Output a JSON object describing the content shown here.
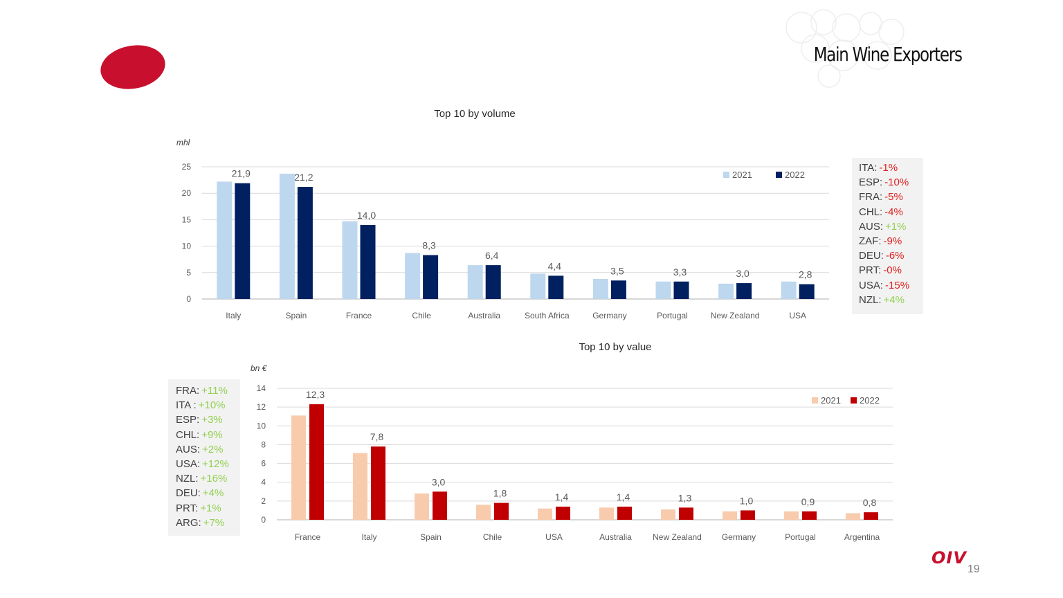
{
  "slide": {
    "title": "Main Wine Exporters",
    "page_number": "19",
    "footer_logo": "OIV",
    "colors": {
      "brand_red": "#c8102e",
      "positive": "#92d050",
      "negative": "#e02020"
    }
  },
  "chart_data": [
    {
      "id": "volume",
      "type": "bar",
      "title": "Top 10 by volume",
      "ylabel": "mhl",
      "xlabel": "",
      "ylim": [
        0,
        25
      ],
      "yticks": [
        0,
        5,
        10,
        15,
        20,
        25
      ],
      "grid": true,
      "legend_position": "top-right",
      "categories": [
        "Italy",
        "Spain",
        "France",
        "Chile",
        "Australia",
        "South Africa",
        "Germany",
        "Portugal",
        "New Zealand",
        "USA"
      ],
      "series": [
        {
          "name": "2021",
          "color": "#bdd7ee",
          "values": [
            22.2,
            23.7,
            14.7,
            8.7,
            6.4,
            4.8,
            3.8,
            3.3,
            2.9,
            3.3
          ]
        },
        {
          "name": "2022",
          "color": "#002060",
          "values": [
            21.9,
            21.2,
            14.0,
            8.3,
            6.4,
            4.4,
            3.5,
            3.3,
            3.0,
            2.8
          ]
        }
      ],
      "data_labels": [
        "21,9",
        "21,2",
        "14,0",
        "8,3",
        "6,4",
        "4,4",
        "3,5",
        "3,3",
        "3,0",
        "2,8"
      ]
    },
    {
      "id": "value",
      "type": "bar",
      "title": "Top 10 by value",
      "ylabel": "bn €",
      "xlabel": "",
      "ylim": [
        0,
        14
      ],
      "yticks": [
        0,
        2,
        4,
        6,
        8,
        10,
        12,
        14
      ],
      "grid": true,
      "legend_position": "top-right",
      "categories": [
        "France",
        "Italy",
        "Spain",
        "Chile",
        "USA",
        "Australia",
        "New Zealand",
        "Germany",
        "Portugal",
        "Argentina"
      ],
      "series": [
        {
          "name": "2021",
          "color": "#f8cbad",
          "values": [
            11.1,
            7.1,
            2.8,
            1.6,
            1.2,
            1.3,
            1.1,
            0.9,
            0.9,
            0.7
          ]
        },
        {
          "name": "2022",
          "color": "#c00000",
          "values": [
            12.3,
            7.8,
            3.0,
            1.8,
            1.4,
            1.4,
            1.3,
            1.0,
            0.9,
            0.8
          ]
        }
      ],
      "data_labels": [
        "12,3",
        "7,8",
        "3,0",
        "1,8",
        "1,4",
        "1,4",
        "1,3",
        "1,0",
        "0,9",
        "0,8"
      ]
    }
  ],
  "volume_changes": [
    {
      "code": "ITA:",
      "value": "-1%",
      "sign": "neg"
    },
    {
      "code": "ESP:",
      "value": "-10%",
      "sign": "neg"
    },
    {
      "code": "FRA:",
      "value": "-5%",
      "sign": "neg"
    },
    {
      "code": "CHL:",
      "value": "-4%",
      "sign": "neg"
    },
    {
      "code": "AUS:",
      "value": "+1%",
      "sign": "pos"
    },
    {
      "code": "ZAF:",
      "value": "-9%",
      "sign": "neg"
    },
    {
      "code": "DEU:",
      "value": "-6%",
      "sign": "neg"
    },
    {
      "code": "PRT:",
      "value": "-0%",
      "sign": "neg"
    },
    {
      "code": "USA:",
      "value": "-15%",
      "sign": "neg"
    },
    {
      "code": "NZL:",
      "value": "+4%",
      "sign": "pos"
    }
  ],
  "value_changes": [
    {
      "code": "FRA:",
      "value": "+11%",
      "sign": "pos"
    },
    {
      "code": "ITA :",
      "value": "+10%",
      "sign": "pos"
    },
    {
      "code": "ESP:",
      "value": "+3%",
      "sign": "pos"
    },
    {
      "code": "CHL:",
      "value": "+9%",
      "sign": "pos"
    },
    {
      "code": "AUS:",
      "value": "+2%",
      "sign": "pos"
    },
    {
      "code": "USA:",
      "value": "+12%",
      "sign": "pos"
    },
    {
      "code": "NZL:",
      "value": "+16%",
      "sign": "pos"
    },
    {
      "code": "DEU:",
      "value": "+4%",
      "sign": "pos"
    },
    {
      "code": "PRT:",
      "value": "+1%",
      "sign": "pos"
    },
    {
      "code": "ARG:",
      "value": "+7%",
      "sign": "pos"
    }
  ]
}
